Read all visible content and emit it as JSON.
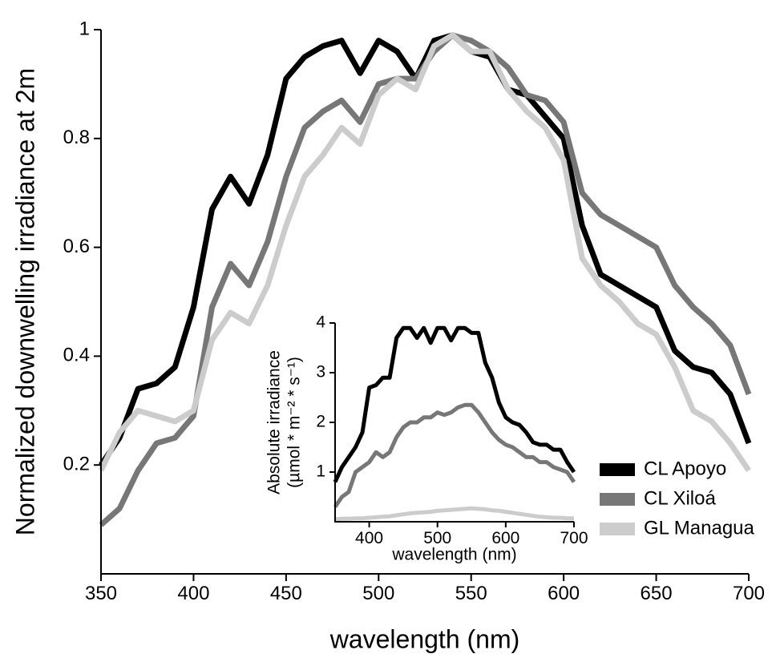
{
  "chart_data": [
    {
      "type": "line",
      "xlabel": "wavelength (nm)",
      "ylabel": "Normalized downwelling irradiance at 2m",
      "x": [
        350,
        360,
        370,
        380,
        390,
        400,
        410,
        420,
        430,
        440,
        450,
        460,
        470,
        480,
        490,
        500,
        510,
        520,
        530,
        540,
        550,
        560,
        570,
        580,
        590,
        600,
        610,
        620,
        630,
        640,
        650,
        660,
        670,
        680,
        690,
        700
      ],
      "series": [
        {
          "name": "CL Apoyo",
          "color": "#000000",
          "values": [
            0.2,
            0.25,
            0.34,
            0.35,
            0.38,
            0.49,
            0.67,
            0.73,
            0.68,
            0.77,
            0.91,
            0.95,
            0.97,
            0.98,
            0.92,
            0.98,
            0.96,
            0.91,
            0.98,
            0.99,
            0.96,
            0.95,
            0.89,
            0.88,
            0.84,
            0.8,
            0.64,
            0.55,
            0.53,
            0.51,
            0.49,
            0.41,
            0.38,
            0.37,
            0.33,
            0.24
          ]
        },
        {
          "name": "CL Xiloá",
          "color": "#777777",
          "values": [
            0.09,
            0.12,
            0.19,
            0.24,
            0.25,
            0.29,
            0.49,
            0.57,
            0.53,
            0.61,
            0.73,
            0.82,
            0.85,
            0.87,
            0.83,
            0.9,
            0.91,
            0.91,
            0.96,
            0.99,
            0.98,
            0.96,
            0.93,
            0.88,
            0.87,
            0.83,
            0.7,
            0.66,
            0.64,
            0.62,
            0.6,
            0.53,
            0.49,
            0.46,
            0.42,
            0.33
          ]
        },
        {
          "name": "GL Managua",
          "color": "#cccccc",
          "values": [
            0.19,
            0.26,
            0.3,
            0.29,
            0.28,
            0.3,
            0.43,
            0.48,
            0.46,
            0.53,
            0.64,
            0.73,
            0.77,
            0.82,
            0.79,
            0.88,
            0.91,
            0.89,
            0.97,
            0.99,
            0.96,
            0.96,
            0.89,
            0.85,
            0.82,
            0.76,
            0.58,
            0.53,
            0.5,
            0.46,
            0.44,
            0.38,
            0.3,
            0.28,
            0.24,
            0.19
          ]
        }
      ],
      "xlim": [
        350,
        700
      ],
      "xticks": [
        350,
        400,
        450,
        500,
        550,
        600,
        650,
        700
      ],
      "ylim": [
        0,
        1
      ],
      "yticks": [
        0.2,
        0.4,
        0.6,
        0.8,
        1
      ],
      "legend": "lower right"
    },
    {
      "type": "line",
      "xlabel": "wavelength (nm)",
      "ylabel": [
        "Absolute irradiance",
        "(µmol * m⁻² * s⁻¹)"
      ],
      "x": [
        350,
        360,
        370,
        380,
        390,
        400,
        410,
        420,
        430,
        440,
        450,
        460,
        470,
        480,
        490,
        500,
        510,
        520,
        530,
        540,
        550,
        560,
        570,
        580,
        590,
        600,
        610,
        620,
        630,
        640,
        650,
        660,
        670,
        680,
        690,
        700
      ],
      "series": [
        {
          "color": "#000000",
          "values": [
            0.8,
            1.1,
            1.3,
            1.5,
            1.8,
            2.7,
            2.75,
            2.9,
            2.9,
            3.7,
            3.9,
            3.9,
            3.7,
            3.9,
            3.6,
            3.9,
            3.9,
            3.65,
            3.9,
            3.9,
            3.8,
            3.8,
            3.2,
            2.9,
            2.4,
            2.1,
            2.0,
            1.95,
            1.8,
            1.6,
            1.55,
            1.55,
            1.45,
            1.45,
            1.2,
            1.0
          ]
        },
        {
          "color": "#777777",
          "values": [
            0.3,
            0.5,
            0.6,
            1.0,
            1.1,
            1.2,
            1.4,
            1.3,
            1.4,
            1.7,
            1.9,
            2.0,
            2.0,
            2.1,
            2.1,
            2.2,
            2.15,
            2.2,
            2.3,
            2.35,
            2.35,
            2.2,
            2.0,
            1.8,
            1.65,
            1.55,
            1.5,
            1.4,
            1.3,
            1.3,
            1.2,
            1.2,
            1.1,
            1.05,
            1.0,
            0.8
          ]
        },
        {
          "color": "#cccccc",
          "values": [
            0.05,
            0.06,
            0.06,
            0.07,
            0.07,
            0.08,
            0.09,
            0.1,
            0.11,
            0.13,
            0.15,
            0.17,
            0.18,
            0.19,
            0.2,
            0.22,
            0.23,
            0.24,
            0.25,
            0.26,
            0.27,
            0.26,
            0.25,
            0.23,
            0.22,
            0.2,
            0.18,
            0.16,
            0.14,
            0.12,
            0.1,
            0.09,
            0.08,
            0.08,
            0.07,
            0.07
          ]
        }
      ],
      "xlim": [
        350,
        700
      ],
      "xticks": [
        400,
        500,
        600,
        700
      ],
      "ylim": [
        0,
        4
      ],
      "yticks": [
        1,
        2,
        3,
        4
      ]
    }
  ]
}
